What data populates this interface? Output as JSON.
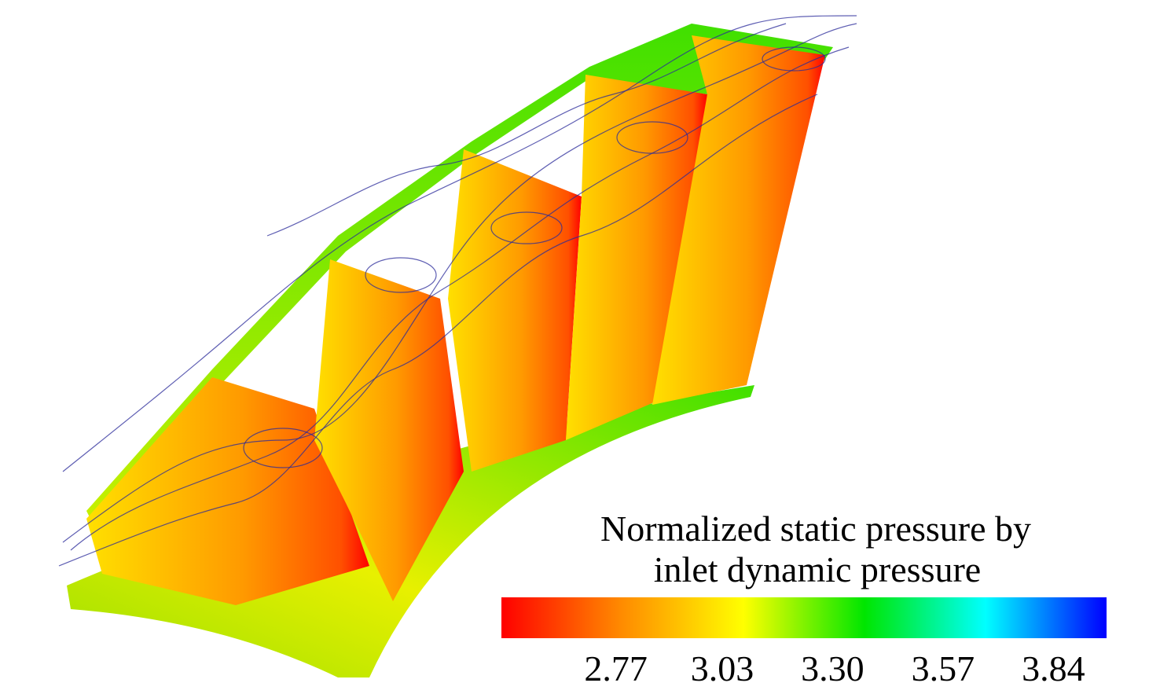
{
  "legend": {
    "title_lines": [
      "Normalized static pressure by",
      "inlet dynamic pressure"
    ],
    "colormap": [
      "#ff0000",
      "#ff8c00",
      "#ffff00",
      "#00e600",
      "#00ffff",
      "#0000ff"
    ],
    "clim": [
      2.49,
      3.97
    ],
    "ticks": [
      2.77,
      3.03,
      {
        "value": 3.3,
        "label": "3.30"
      },
      3.57,
      3.84
    ]
  }
}
